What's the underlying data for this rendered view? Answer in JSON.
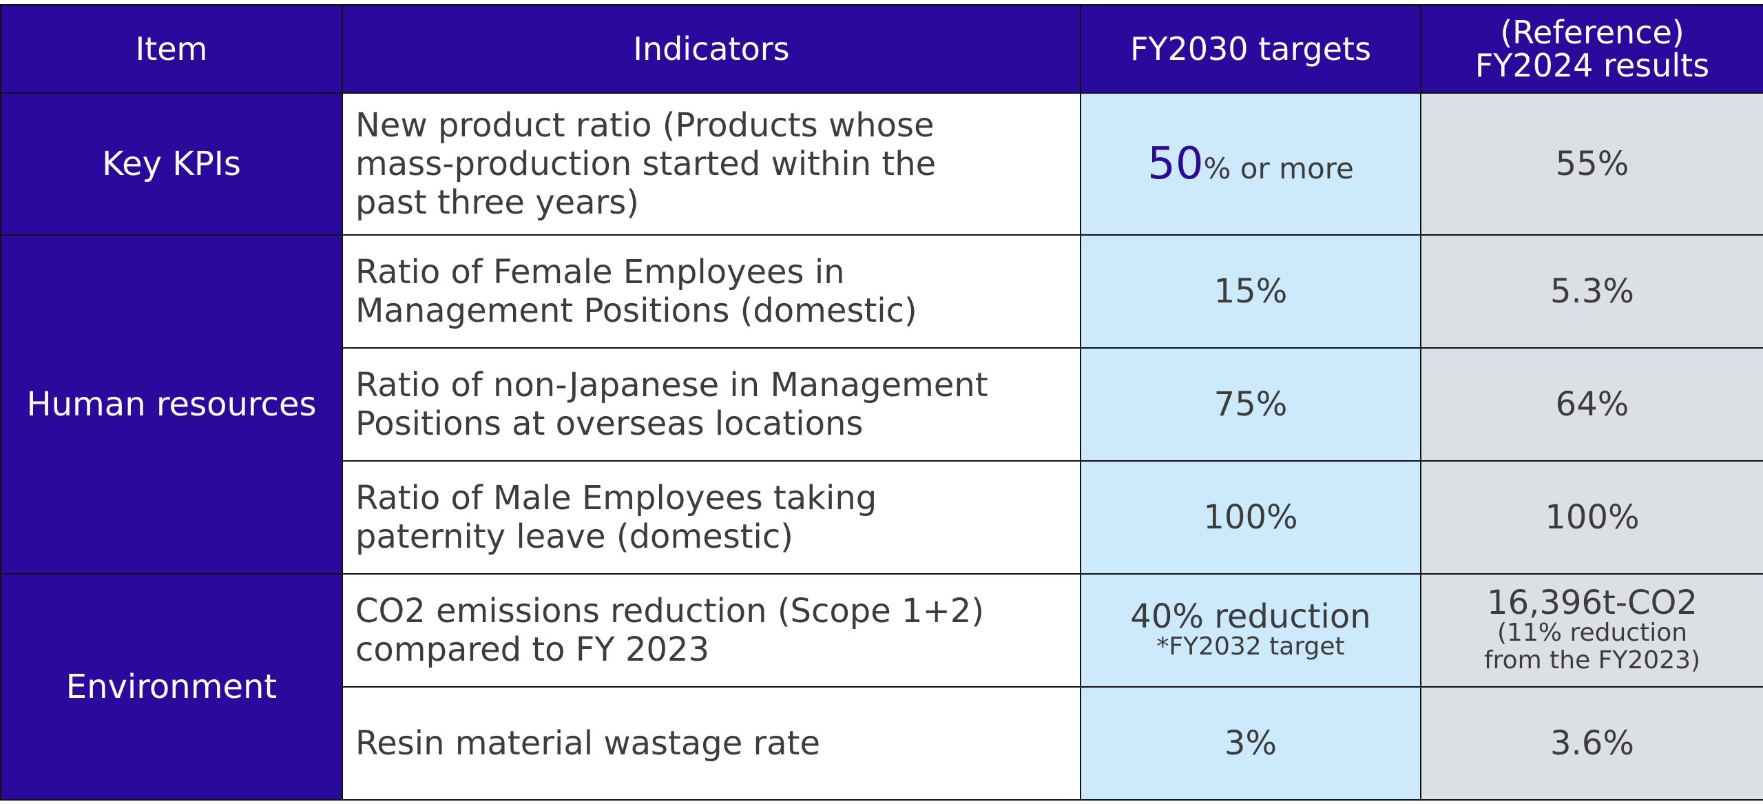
{
  "header": {
    "item": "Item",
    "indicators": "Indicators",
    "targets": "FY2030 targets",
    "results_line1": "(Reference)",
    "results_line2": "FY2024 results"
  },
  "rows": [
    {
      "item": "Key KPIs",
      "indicator": "New product ratio (Products whose mass-production started within the past three years)",
      "target_big": "50",
      "target_rest": "% or more",
      "result": "55%"
    },
    {
      "item": "Human resources",
      "indicator": "Ratio of Female Employees in Management Positions (domestic)",
      "target": "15%",
      "result": "5.3%"
    },
    {
      "indicator": "Ratio of non-Japanese in Management Positions at overseas locations",
      "target": "75%",
      "result": "64%"
    },
    {
      "indicator": "Ratio of Male Employees taking paternity leave (domestic)",
      "target": "100%",
      "result": "100%"
    },
    {
      "item": "Environment",
      "indicator": "CO2 emissions reduction (Scope 1+2) compared to FY 2023",
      "target": "40% reduction",
      "target_note": "*FY2032 target",
      "result": "16,396t-CO2",
      "result_note_line1": "(11% reduction",
      "result_note_line2": "from the FY2023)"
    },
    {
      "indicator": "Resin material wastage rate",
      "target": "3%",
      "result": "3.6%"
    }
  ],
  "colors": {
    "header": "#2a0a9c",
    "target_bg": "#cdeafc",
    "result_bg": "#dcdfe3"
  }
}
